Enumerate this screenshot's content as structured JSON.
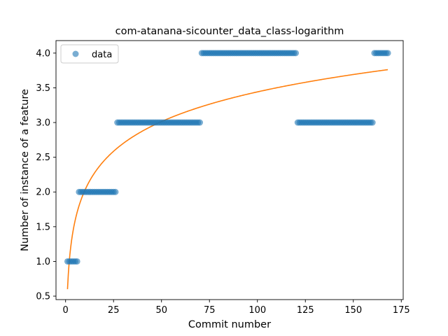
{
  "chart_data": {
    "type": "scatter",
    "title": "com-atanana-sicounter_data_class-logarithm",
    "xlabel": "Commit number",
    "ylabel": "Number of instance of a feature",
    "xlim": [
      -5,
      176
    ],
    "ylim": [
      0.45,
      4.18
    ],
    "xticks": [
      0,
      25,
      50,
      75,
      100,
      125,
      150,
      175
    ],
    "xtick_labels": [
      "0",
      "25",
      "50",
      "75",
      "100",
      "125",
      "150",
      "175"
    ],
    "yticks": [
      0.5,
      1.0,
      1.5,
      2.0,
      2.5,
      3.0,
      3.5,
      4.0
    ],
    "ytick_labels": [
      "0.5",
      "1.0",
      "1.5",
      "2.0",
      "2.5",
      "3.0",
      "3.5",
      "4.0"
    ],
    "grid": false,
    "legend": {
      "placement": "top-left",
      "entries": [
        "data"
      ]
    },
    "series": [
      {
        "name": "data",
        "kind": "points",
        "color": "#1f77b4",
        "segments": [
          {
            "x_start": 1,
            "x_end": 6,
            "y": 1
          },
          {
            "x_start": 7,
            "x_end": 26,
            "y": 2
          },
          {
            "x_start": 27,
            "x_end": 70,
            "y": 3
          },
          {
            "x_start": 71,
            "x_end": 120,
            "y": 4
          },
          {
            "x_start": 121,
            "x_end": 160,
            "y": 3
          },
          {
            "x_start": 161,
            "x_end": 168,
            "y": 4
          }
        ]
      },
      {
        "kind": "fit-curve",
        "color": "#ff7f0e",
        "model": "logarithmic",
        "a": 0.6,
        "b": 0.617,
        "x_range": [
          1,
          168
        ]
      }
    ]
  }
}
